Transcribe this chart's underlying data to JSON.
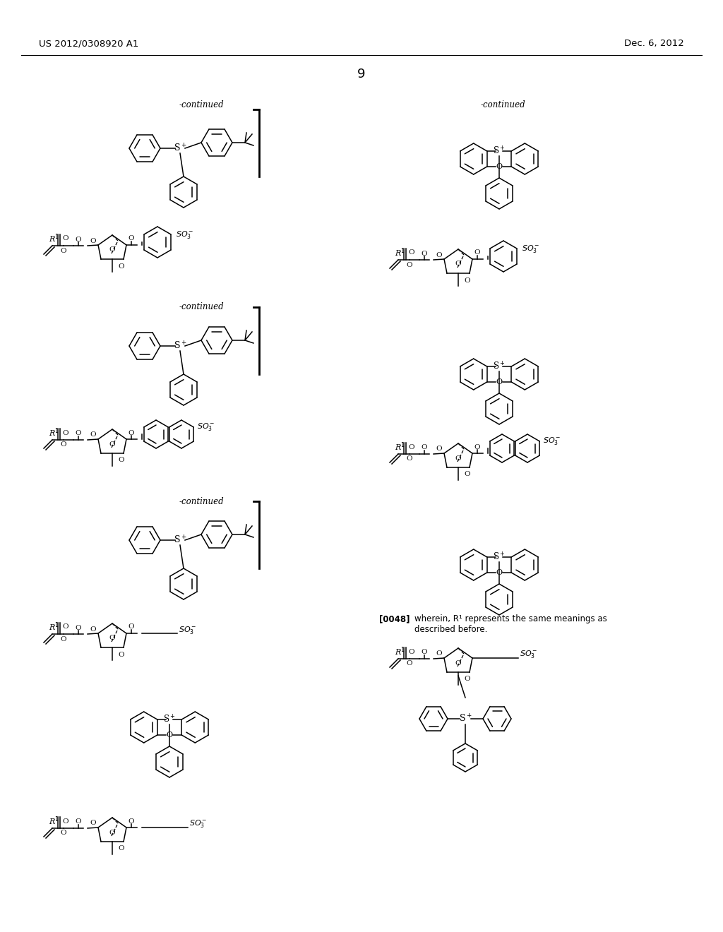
{
  "header_left": "US 2012/0308920 A1",
  "header_right": "Dec. 6, 2012",
  "page_number": "9",
  "bg_color": "#ffffff",
  "text_color": "#000000",
  "lw": 1.1,
  "r_hex": 22,
  "annotation": "[0048]  wherein, R¹ represents the same meanings as described before."
}
